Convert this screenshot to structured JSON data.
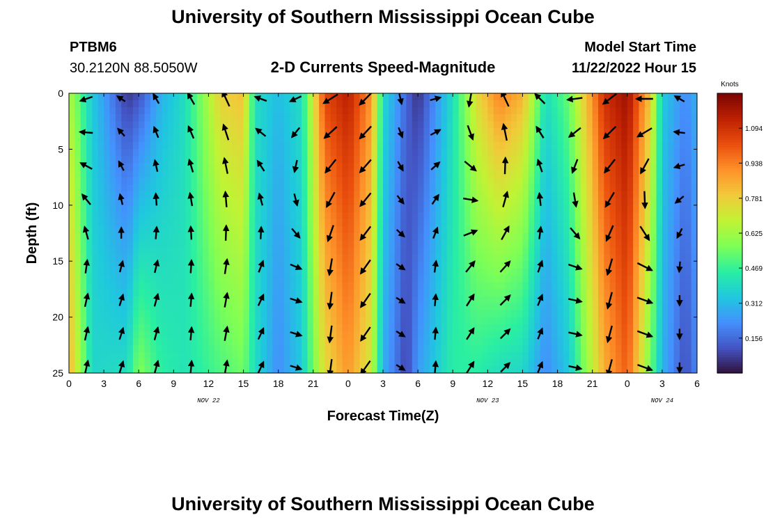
{
  "header": {
    "title": "University of Southern Mississippi Ocean Cube",
    "station": "PTBM6",
    "coords": "30.2120N  88.5050W",
    "subtitle": "2-D Currents Speed-Magnitude",
    "model_label": "Model Start Time",
    "model_time": "11/22/2022 Hour 15"
  },
  "footer": {
    "title": "University of Southern Mississippi Ocean Cube"
  },
  "colors": {
    "scale": [
      "#30123b",
      "#4454c4",
      "#4490fe",
      "#1fc8de",
      "#29efa2",
      "#7dff56",
      "#c1f334",
      "#f1ca3a",
      "#fe922a",
      "#ea4f0d",
      "#be2102",
      "#7a0403"
    ],
    "arrow": "#000000",
    "axis": "#000000"
  },
  "chart_data": {
    "type": "heatmap",
    "title": "2-D Currents Speed-Magnitude",
    "xlabel": "Forecast Time(Z)",
    "ylabel": "Depth (ft)",
    "x_tick_labels": [
      "0",
      "3",
      "6",
      "9",
      "12",
      "15",
      "18",
      "21",
      "0",
      "3",
      "6",
      "9",
      "12",
      "15",
      "18",
      "21",
      "0",
      "3",
      "6"
    ],
    "y_tick_labels": [
      "0",
      "5",
      "10",
      "15",
      "20",
      "25"
    ],
    "date_labels": [
      {
        "text": "NOV 22",
        "hour": 12
      },
      {
        "text": "NOV 23",
        "hour": 36
      },
      {
        "text": "NOV 24",
        "hour": 51
      }
    ],
    "xlim_hours": [
      0,
      54
    ],
    "ylim_ft": [
      0,
      25
    ],
    "depth_levels_ft": [
      0,
      3,
      6,
      9,
      12,
      15,
      18,
      21,
      24
    ],
    "colorbar": {
      "unit": "Knots",
      "range": [
        0,
        1.25
      ],
      "tick_values": [
        0.156,
        0.312,
        0.469,
        0.625,
        0.781,
        0.938,
        1.094
      ],
      "tick_labels": [
        "0.156",
        "0.312",
        "0.469",
        "0.625",
        "0.781",
        "0.938",
        "1.094"
      ]
    },
    "speed_timeline": [
      {
        "hour": 0,
        "surface": 0.65,
        "deep": 0.85
      },
      {
        "hour": 2,
        "surface": 0.35,
        "deep": 0.38
      },
      {
        "hour": 5,
        "surface": 0.06,
        "deep": 0.4
      },
      {
        "hour": 6,
        "surface": 0.1,
        "deep": 0.58
      },
      {
        "hour": 8,
        "surface": 0.3,
        "deep": 0.45
      },
      {
        "hour": 10,
        "surface": 0.4,
        "deep": 0.42
      },
      {
        "hour": 13,
        "surface": 0.78,
        "deep": 0.5
      },
      {
        "hour": 15,
        "surface": 0.82,
        "deep": 0.55
      },
      {
        "hour": 16,
        "surface": 0.4,
        "deep": 0.4
      },
      {
        "hour": 18,
        "surface": 0.32,
        "deep": 0.22
      },
      {
        "hour": 20,
        "surface": 0.4,
        "deep": 0.35
      },
      {
        "hour": 22,
        "surface": 1.05,
        "deep": 0.75
      },
      {
        "hour": 24,
        "surface": 1.15,
        "deep": 0.9
      },
      {
        "hour": 26,
        "surface": 0.9,
        "deep": 0.7
      },
      {
        "hour": 27,
        "surface": 0.4,
        "deep": 0.3
      },
      {
        "hour": 29,
        "surface": 0.15,
        "deep": 0.08
      },
      {
        "hour": 30,
        "surface": 0.05,
        "deep": 0.25
      },
      {
        "hour": 33,
        "surface": 0.4,
        "deep": 0.45
      },
      {
        "hour": 35,
        "surface": 0.75,
        "deep": 0.45
      },
      {
        "hour": 37,
        "surface": 0.95,
        "deep": 0.4
      },
      {
        "hour": 39,
        "surface": 0.85,
        "deep": 0.38
      },
      {
        "hour": 41,
        "surface": 0.4,
        "deep": 0.22
      },
      {
        "hour": 43,
        "surface": 0.55,
        "deep": 0.35
      },
      {
        "hour": 46,
        "surface": 1.1,
        "deep": 0.85
      },
      {
        "hour": 48,
        "surface": 1.2,
        "deep": 1.0
      },
      {
        "hour": 50,
        "surface": 0.8,
        "deep": 0.55
      },
      {
        "hour": 51,
        "surface": 0.35,
        "deep": 0.3
      },
      {
        "hour": 53,
        "surface": 0.22,
        "deep": 0.1
      },
      {
        "hour": 54,
        "surface": 0.3,
        "deep": 0.22
      }
    ],
    "arrow_times_hours": [
      1.5,
      4.5,
      7.5,
      10.5,
      13.5,
      16.5,
      19.5,
      22.5,
      25.5,
      28.5,
      31.5,
      34.5,
      37.5,
      40.5,
      43.5,
      46.5,
      49.5,
      52.5
    ],
    "arrow_directions_deg": [
      {
        "hour": 0,
        "surface": 225,
        "deep": 10
      },
      {
        "hour": 6,
        "surface": 330,
        "deep": 20
      },
      {
        "hour": 12,
        "surface": 330,
        "deep": 0
      },
      {
        "hour": 15,
        "surface": 340,
        "deep": 20
      },
      {
        "hour": 18,
        "surface": 240,
        "deep": 30
      },
      {
        "hour": 21,
        "surface": 250,
        "deep": 185
      },
      {
        "hour": 24,
        "surface": 225,
        "deep": 190
      },
      {
        "hour": 27,
        "surface": 225,
        "deep": 240
      },
      {
        "hour": 30,
        "surface": 110,
        "deep": 5
      },
      {
        "hour": 33,
        "surface": 40,
        "deep": 5
      },
      {
        "hour": 36,
        "surface": 340,
        "deep": 60
      },
      {
        "hour": 39,
        "surface": 330,
        "deep": 30
      },
      {
        "hour": 42,
        "surface": 300,
        "deep": 15
      },
      {
        "hour": 45,
        "surface": 225,
        "deep": 190
      },
      {
        "hour": 48,
        "surface": 240,
        "deep": 200
      },
      {
        "hour": 51,
        "surface": 300,
        "deep": 20
      },
      {
        "hour": 54,
        "surface": 300,
        "deep": 340
      }
    ]
  }
}
